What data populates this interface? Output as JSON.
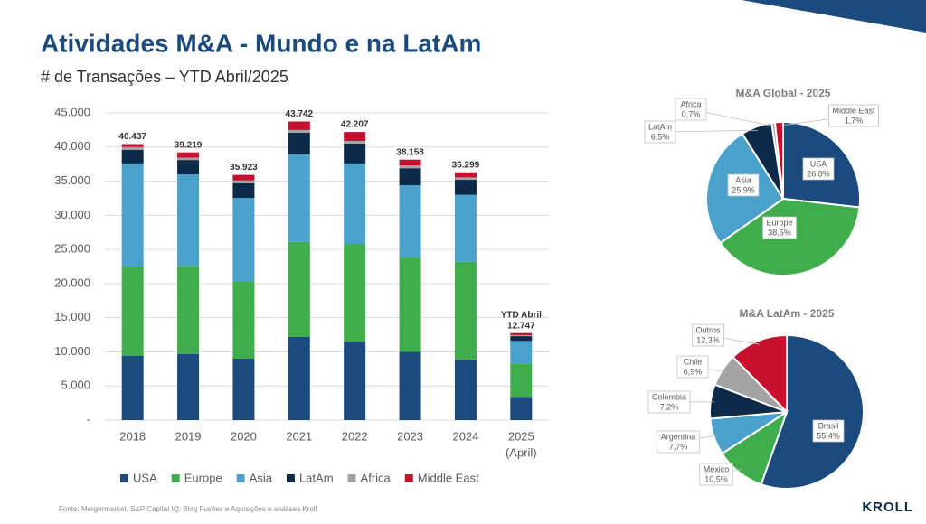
{
  "header": {
    "title": "Atividades M&A - Mundo e na LatAm",
    "subtitle": "# de Transações – YTD Abril/2025"
  },
  "footer": {
    "source": "Fonte: Mergermarket, S&P Capital IQ, Blog Fusões e Aquisições e análises Kroll",
    "logo": "KROLL"
  },
  "chart_data": [
    {
      "type": "stacked_bar",
      "categories": [
        "2018",
        "2019",
        "2020",
        "2021",
        "2022",
        "2023",
        "2024",
        "2025"
      ],
      "series": [
        {
          "name": "USA",
          "color": "#1b4a7f",
          "values": [
            9400,
            9700,
            9000,
            12200,
            11500,
            10000,
            8900,
            3400
          ]
        },
        {
          "name": "Europe",
          "color": "#3fad4b",
          "values": [
            13100,
            12900,
            11250,
            13900,
            14300,
            13800,
            14300,
            4900
          ]
        },
        {
          "name": "Asia",
          "color": "#4aa1cc",
          "values": [
            15100,
            13400,
            12300,
            12800,
            11800,
            10600,
            9800,
            3300
          ]
        },
        {
          "name": "LatAm",
          "color": "#0e2a49",
          "values": [
            2000,
            2100,
            2150,
            3200,
            2900,
            2500,
            2200,
            700
          ]
        },
        {
          "name": "Africa",
          "color": "#a3a3a3",
          "values": [
            400,
            350,
            400,
            400,
            400,
            400,
            350,
            150
          ]
        },
        {
          "name": "Middle East",
          "color": "#c8102e",
          "values": [
            437,
            769,
            823,
            1242,
            1307,
            858,
            749,
            297
          ]
        }
      ],
      "totals": {
        "values": [
          40437,
          39219,
          35923,
          43742,
          42207,
          38158,
          36299,
          12747
        ],
        "value_labels": [
          "40.437",
          "39.219",
          "35.923",
          "43.742",
          "42.207",
          "38.158",
          "36.299",
          "12.747"
        ]
      },
      "annotations": [
        {
          "text": "YTD Abril",
          "category": 7
        },
        {
          "text": "(April)",
          "category": 7
        }
      ],
      "ylim": [
        0,
        45000
      ],
      "yticks": [
        {
          "value": 0,
          "label": "-"
        },
        {
          "value": 5000,
          "label": "5.000"
        },
        {
          "value": 10000,
          "label": "10.000"
        },
        {
          "value": 15000,
          "label": "15.000"
        },
        {
          "value": 20000,
          "label": "20.000"
        },
        {
          "value": 25000,
          "label": "25.000"
        },
        {
          "value": 30000,
          "label": "30.000"
        },
        {
          "value": 35000,
          "label": "35.000"
        },
        {
          "value": 40000,
          "label": "40.000"
        },
        {
          "value": 45000,
          "label": "45.000"
        }
      ],
      "grid": true,
      "legend": "bottom"
    },
    {
      "type": "pie",
      "title": "M&A Global - 2025",
      "categories": [
        "USA",
        "Europe",
        "Asia",
        "LatAm",
        "Africa",
        "Middle East"
      ],
      "values": [
        26.8,
        38.5,
        25.9,
        6.5,
        0.7,
        1.7
      ],
      "value_labels": [
        "26,8%",
        "38,5%",
        "25,9%",
        "6,5%",
        "0,7%",
        "1,7%"
      ],
      "colors": [
        "#1b4a7f",
        "#3fad4b",
        "#4aa1cc",
        "#0e2a49",
        "#a3a3a3",
        "#c8102e"
      ]
    },
    {
      "type": "pie",
      "title": "M&A LatAm - 2025",
      "categories": [
        "Brasil",
        "Mexico",
        "Argentina",
        "Colombia",
        "Chile",
        "Outros"
      ],
      "values": [
        55.4,
        10.5,
        7.7,
        7.2,
        6.9,
        12.3
      ],
      "value_labels": [
        "55,4%",
        "10,5%",
        "7,7%",
        "7,2%",
        "6,9%",
        "12,3%"
      ],
      "colors": [
        "#1b4a7f",
        "#3fad4b",
        "#4aa1cc",
        "#0e2a49",
        "#a3a3a3",
        "#c8102e"
      ]
    }
  ]
}
